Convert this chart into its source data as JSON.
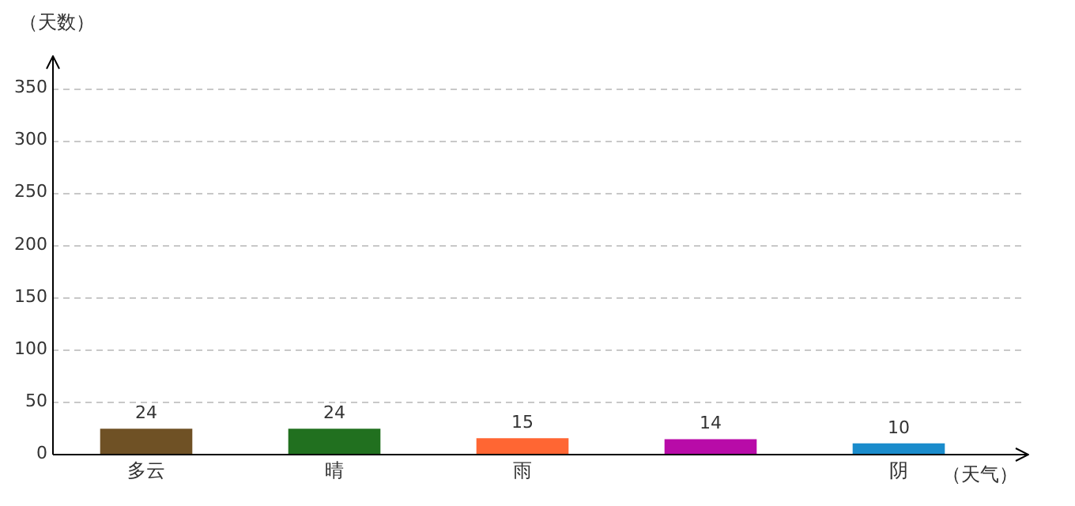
{
  "chart_data": {
    "type": "bar",
    "xlabel": "（天气）",
    "ylabel": "（天数）",
    "categories": [
      "多云",
      "晴",
      "雨",
      null,
      "阴"
    ],
    "values": [
      24,
      24,
      15,
      14,
      10
    ],
    "colors": [
      "#6f5125",
      "#21701f",
      "#ff6633",
      "#b80ba8",
      "#1a8ccc"
    ],
    "ylim": [
      0,
      380
    ],
    "yticks": [
      0,
      50,
      100,
      150,
      200,
      250,
      300,
      350
    ],
    "grid": "y",
    "data_labels": true,
    "legend": false
  }
}
